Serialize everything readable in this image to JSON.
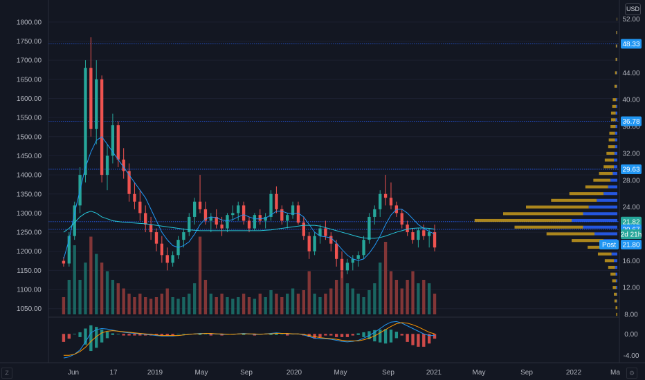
{
  "currency_button": "USD",
  "corner_left": "Z",
  "corner_right": "⚙",
  "colors": {
    "up": "#26a69a",
    "down": "#ef5350",
    "vol_up": "#1c6e68",
    "vol_down": "#8f3a3a",
    "ma_fast": "#2196f3",
    "ma_slow": "#26c6da",
    "macd_line": "#2196f3",
    "signal_line": "#ff9800",
    "vp_up": "#2962ff",
    "vp_down": "#c79a1c",
    "hline": "#2962ff",
    "tag_blue": "#2196f3",
    "tag_teal": "#26a69a"
  },
  "chart_data": {
    "type": "candlestick",
    "left_axis": {
      "ticks": [
        "1800.00",
        "1750.00",
        "1700.00",
        "1650.00",
        "1600.00",
        "1550.00",
        "1500.00",
        "1450.00",
        "1400.00",
        "1350.00",
        "1300.00",
        "1250.00",
        "1200.00",
        "1150.00",
        "1100.00",
        "1050.00"
      ],
      "range": [
        1035,
        1825
      ]
    },
    "right_axis": {
      "ticks": [
        "52.00",
        "48.00",
        "44.00",
        "40.00",
        "36.00",
        "32.00",
        "28.00",
        "24.00",
        "20.00",
        "16.00",
        "12.00",
        "8.00"
      ],
      "range": [
        8,
        53
      ]
    },
    "x_axis_labels": [
      "Jun",
      "17",
      "2019",
      "May",
      "Sep",
      "2020",
      "May",
      "Sep",
      "2021",
      "May",
      "Sep",
      "2022",
      "Ma"
    ],
    "macd_axis_ticks": [
      "0.00",
      "-4.00"
    ],
    "horizontal_levels": [
      {
        "value": 48.33,
        "label": "48.33",
        "tag": "blue"
      },
      {
        "value": 36.78,
        "label": "36.78",
        "tag": "blue"
      },
      {
        "value": 29.63,
        "label": "29.63",
        "tag": "blue"
      },
      {
        "value": 21.82,
        "label": "21.82",
        "tag": "teal"
      },
      {
        "value": 20.67,
        "label": "20.67",
        "tag": "blue"
      }
    ],
    "price_tags": [
      {
        "label": "2d 21h",
        "tag": "teal"
      },
      {
        "label": "Post",
        "tag": "blue"
      },
      {
        "label": "21.80",
        "tag": "blue"
      }
    ],
    "candles": [
      [
        1175,
        1185,
        1160,
        1168
      ],
      [
        1168,
        1250,
        1160,
        1240
      ],
      [
        1240,
        1330,
        1230,
        1320
      ],
      [
        1320,
        1420,
        1300,
        1400
      ],
      [
        1400,
        1700,
        1380,
        1680
      ],
      [
        1680,
        1760,
        1500,
        1520
      ],
      [
        1520,
        1700,
        1480,
        1650
      ],
      [
        1650,
        1660,
        1380,
        1400
      ],
      [
        1400,
        1480,
        1360,
        1450
      ],
      [
        1450,
        1560,
        1430,
        1530
      ],
      [
        1530,
        1540,
        1420,
        1440
      ],
      [
        1440,
        1470,
        1390,
        1410
      ],
      [
        1410,
        1430,
        1330,
        1350
      ],
      [
        1350,
        1380,
        1310,
        1330
      ],
      [
        1330,
        1360,
        1280,
        1300
      ],
      [
        1300,
        1320,
        1250,
        1270
      ],
      [
        1270,
        1290,
        1230,
        1250
      ],
      [
        1250,
        1260,
        1200,
        1220
      ],
      [
        1220,
        1240,
        1170,
        1190
      ],
      [
        1190,
        1210,
        1150,
        1170
      ],
      [
        1170,
        1200,
        1160,
        1190
      ],
      [
        1190,
        1240,
        1180,
        1230
      ],
      [
        1230,
        1260,
        1210,
        1250
      ],
      [
        1250,
        1300,
        1240,
        1290
      ],
      [
        1290,
        1340,
        1270,
        1330
      ],
      [
        1330,
        1400,
        1300,
        1310
      ],
      [
        1310,
        1330,
        1270,
        1280
      ],
      [
        1280,
        1300,
        1250,
        1290
      ],
      [
        1290,
        1310,
        1260,
        1270
      ],
      [
        1270,
        1290,
        1240,
        1260
      ],
      [
        1260,
        1300,
        1250,
        1295
      ],
      [
        1295,
        1320,
        1280,
        1300
      ],
      [
        1300,
        1330,
        1280,
        1320
      ],
      [
        1320,
        1330,
        1270,
        1280
      ],
      [
        1280,
        1290,
        1250,
        1260
      ],
      [
        1260,
        1300,
        1255,
        1295
      ],
      [
        1295,
        1310,
        1270,
        1280
      ],
      [
        1280,
        1300,
        1260,
        1290
      ],
      [
        1290,
        1360,
        1280,
        1350
      ],
      [
        1350,
        1370,
        1300,
        1310
      ],
      [
        1310,
        1320,
        1270,
        1280
      ],
      [
        1280,
        1300,
        1260,
        1295
      ],
      [
        1295,
        1330,
        1285,
        1320
      ],
      [
        1320,
        1330,
        1270,
        1275
      ],
      [
        1275,
        1290,
        1230,
        1240
      ],
      [
        1240,
        1250,
        1180,
        1200
      ],
      [
        1200,
        1250,
        1190,
        1240
      ],
      [
        1240,
        1270,
        1220,
        1260
      ],
      [
        1260,
        1280,
        1230,
        1240
      ],
      [
        1240,
        1250,
        1200,
        1220
      ],
      [
        1220,
        1230,
        1160,
        1180
      ],
      [
        1180,
        1200,
        1130,
        1150
      ],
      [
        1150,
        1180,
        1140,
        1170
      ],
      [
        1170,
        1190,
        1150,
        1180
      ],
      [
        1180,
        1200,
        1160,
        1190
      ],
      [
        1190,
        1240,
        1180,
        1230
      ],
      [
        1230,
        1300,
        1220,
        1290
      ],
      [
        1290,
        1320,
        1270,
        1310
      ],
      [
        1310,
        1360,
        1290,
        1350
      ],
      [
        1350,
        1400,
        1320,
        1340
      ],
      [
        1340,
        1380,
        1310,
        1320
      ],
      [
        1320,
        1330,
        1290,
        1300
      ],
      [
        1300,
        1310,
        1260,
        1270
      ],
      [
        1270,
        1280,
        1240,
        1250
      ],
      [
        1250,
        1260,
        1220,
        1230
      ],
      [
        1230,
        1260,
        1210,
        1255
      ],
      [
        1255,
        1270,
        1230,
        1240
      ],
      [
        1240,
        1260,
        1210,
        1250
      ],
      [
        1250,
        1270,
        1200,
        1210
      ]
    ],
    "ma_fast": [
      1180,
      1230,
      1300,
      1360,
      1420,
      1460,
      1490,
      1500,
      1480,
      1460,
      1440,
      1420,
      1400,
      1380,
      1360,
      1340,
      1310,
      1280,
      1250,
      1230,
      1215,
      1210,
      1215,
      1225,
      1245,
      1270,
      1285,
      1290,
      1288,
      1282,
      1280,
      1283,
      1290,
      1296,
      1290,
      1285,
      1285,
      1287,
      1295,
      1305,
      1305,
      1300,
      1298,
      1300,
      1290,
      1270,
      1250,
      1240,
      1238,
      1235,
      1222,
      1205,
      1190,
      1180,
      1176,
      1180,
      1195,
      1215,
      1240,
      1270,
      1295,
      1310,
      1310,
      1300,
      1285,
      1270,
      1260,
      1252,
      1245
    ],
    "ma_slow": [
      1250,
      1260,
      1275,
      1290,
      1300,
      1305,
      1300,
      1290,
      1285,
      1280,
      1278,
      1276,
      1275,
      1274,
      1273,
      1272,
      1270,
      1268,
      1266,
      1264,
      1262,
      1260,
      1258,
      1256,
      1255,
      1254,
      1254,
      1254,
      1254,
      1254,
      1254,
      1254,
      1254,
      1254,
      1254,
      1254,
      1254,
      1255,
      1256,
      1258,
      1260,
      1262,
      1264,
      1266,
      1268,
      1268,
      1268,
      1266,
      1262,
      1258,
      1254,
      1250,
      1246,
      1242,
      1238,
      1235,
      1234,
      1234,
      1236,
      1240,
      1245,
      1250,
      1254,
      1258,
      1260,
      1261,
      1261,
      1260,
      1258
    ],
    "volume": [
      0.1,
      0.2,
      0.4,
      0.2,
      0.3,
      0.45,
      0.35,
      0.3,
      0.25,
      0.2,
      0.18,
      0.15,
      0.12,
      0.1,
      0.12,
      0.1,
      0.09,
      0.1,
      0.12,
      0.15,
      0.1,
      0.09,
      0.1,
      0.12,
      0.18,
      0.45,
      0.2,
      0.12,
      0.1,
      0.12,
      0.1,
      0.09,
      0.1,
      0.12,
      0.1,
      0.09,
      0.12,
      0.1,
      0.14,
      0.12,
      0.1,
      0.12,
      0.15,
      0.12,
      0.14,
      0.25,
      0.12,
      0.1,
      0.12,
      0.15,
      0.2,
      0.25,
      0.18,
      0.15,
      0.12,
      0.1,
      0.14,
      0.18,
      0.3,
      0.42,
      0.25,
      0.2,
      0.15,
      0.2,
      0.25,
      0.18,
      0.2,
      0.18,
      0.12
    ],
    "macd": [
      -4.5,
      -4.3,
      -3.8,
      -3.0,
      -1.5,
      0.2,
      0.8,
      1.0,
      0.9,
      0.7,
      0.5,
      0.3,
      0.2,
      0.1,
      0.0,
      -0.1,
      -0.2,
      -0.3,
      -0.4,
      -0.4,
      -0.4,
      -0.3,
      -0.2,
      -0.1,
      0.0,
      0.1,
      0.1,
      0.0,
      0.0,
      -0.1,
      -0.1,
      -0.1,
      0.0,
      0.1,
      0.0,
      -0.1,
      -0.1,
      0.0,
      0.1,
      0.2,
      0.1,
      0.0,
      0.0,
      0.0,
      -0.2,
      -0.5,
      -0.8,
      -0.9,
      -0.9,
      -1.0,
      -1.2,
      -1.4,
      -1.5,
      -1.4,
      -1.2,
      -0.8,
      -0.3,
      0.3,
      1.0,
      1.7,
      2.2,
      2.3,
      2.0,
      1.5,
      1.0,
      0.5,
      0.0,
      -0.3,
      -0.3
    ],
    "signal": [
      -4.0,
      -4.0,
      -3.8,
      -3.3,
      -2.5,
      -1.4,
      -0.5,
      0.2,
      0.5,
      0.6,
      0.5,
      0.4,
      0.3,
      0.2,
      0.1,
      0.0,
      -0.1,
      -0.2,
      -0.3,
      -0.3,
      -0.3,
      -0.3,
      -0.2,
      -0.1,
      0.0,
      0.0,
      0.1,
      0.1,
      0.0,
      0.0,
      -0.1,
      -0.1,
      0.0,
      0.0,
      0.0,
      0.0,
      -0.1,
      0.0,
      0.0,
      0.1,
      0.1,
      0.1,
      0.0,
      0.0,
      -0.1,
      -0.3,
      -0.5,
      -0.7,
      -0.8,
      -0.9,
      -1.0,
      -1.2,
      -1.3,
      -1.3,
      -1.3,
      -1.1,
      -0.8,
      -0.4,
      0.2,
      0.8,
      1.4,
      1.9,
      2.1,
      2.0,
      1.7,
      1.3,
      0.8,
      0.3,
      0.0
    ],
    "volume_profile": [
      [
        8,
        0.01,
        0.0
      ],
      [
        9,
        0.015,
        0.0
      ],
      [
        10,
        0.02,
        0.005
      ],
      [
        11,
        0.025,
        0.005
      ],
      [
        12,
        0.03,
        0.01
      ],
      [
        13,
        0.035,
        0.01
      ],
      [
        14,
        0.045,
        0.015
      ],
      [
        15,
        0.06,
        0.02
      ],
      [
        16,
        0.08,
        0.03
      ],
      [
        17,
        0.12,
        0.05
      ],
      [
        18,
        0.18,
        0.08
      ],
      [
        19,
        0.28,
        0.12
      ],
      [
        20,
        0.42,
        0.2
      ],
      [
        21,
        0.6,
        0.3
      ],
      [
        22,
        0.85,
        0.4
      ],
      [
        23,
        0.7,
        0.3
      ],
      [
        24,
        0.55,
        0.25
      ],
      [
        25,
        0.4,
        0.18
      ],
      [
        26,
        0.3,
        0.12
      ],
      [
        27,
        0.2,
        0.08
      ],
      [
        28,
        0.15,
        0.06
      ],
      [
        29,
        0.12,
        0.04
      ],
      [
        30,
        0.09,
        0.03
      ],
      [
        31,
        0.08,
        0.03
      ],
      [
        32,
        0.07,
        0.025
      ],
      [
        33,
        0.06,
        0.02
      ],
      [
        34,
        0.055,
        0.02
      ],
      [
        35,
        0.05,
        0.02
      ],
      [
        36,
        0.045,
        0.015
      ],
      [
        37,
        0.04,
        0.015
      ],
      [
        38,
        0.04,
        0.015
      ],
      [
        39,
        0.035,
        0.01
      ],
      [
        40,
        0.03,
        0.01
      ],
      [
        42,
        0.02,
        0.005
      ],
      [
        44,
        0.015,
        0.005
      ],
      [
        46,
        0.012,
        0.003
      ],
      [
        48,
        0.01,
        0.003
      ],
      [
        50,
        0.008,
        0.002
      ],
      [
        52,
        0.005,
        0.001
      ]
    ]
  }
}
